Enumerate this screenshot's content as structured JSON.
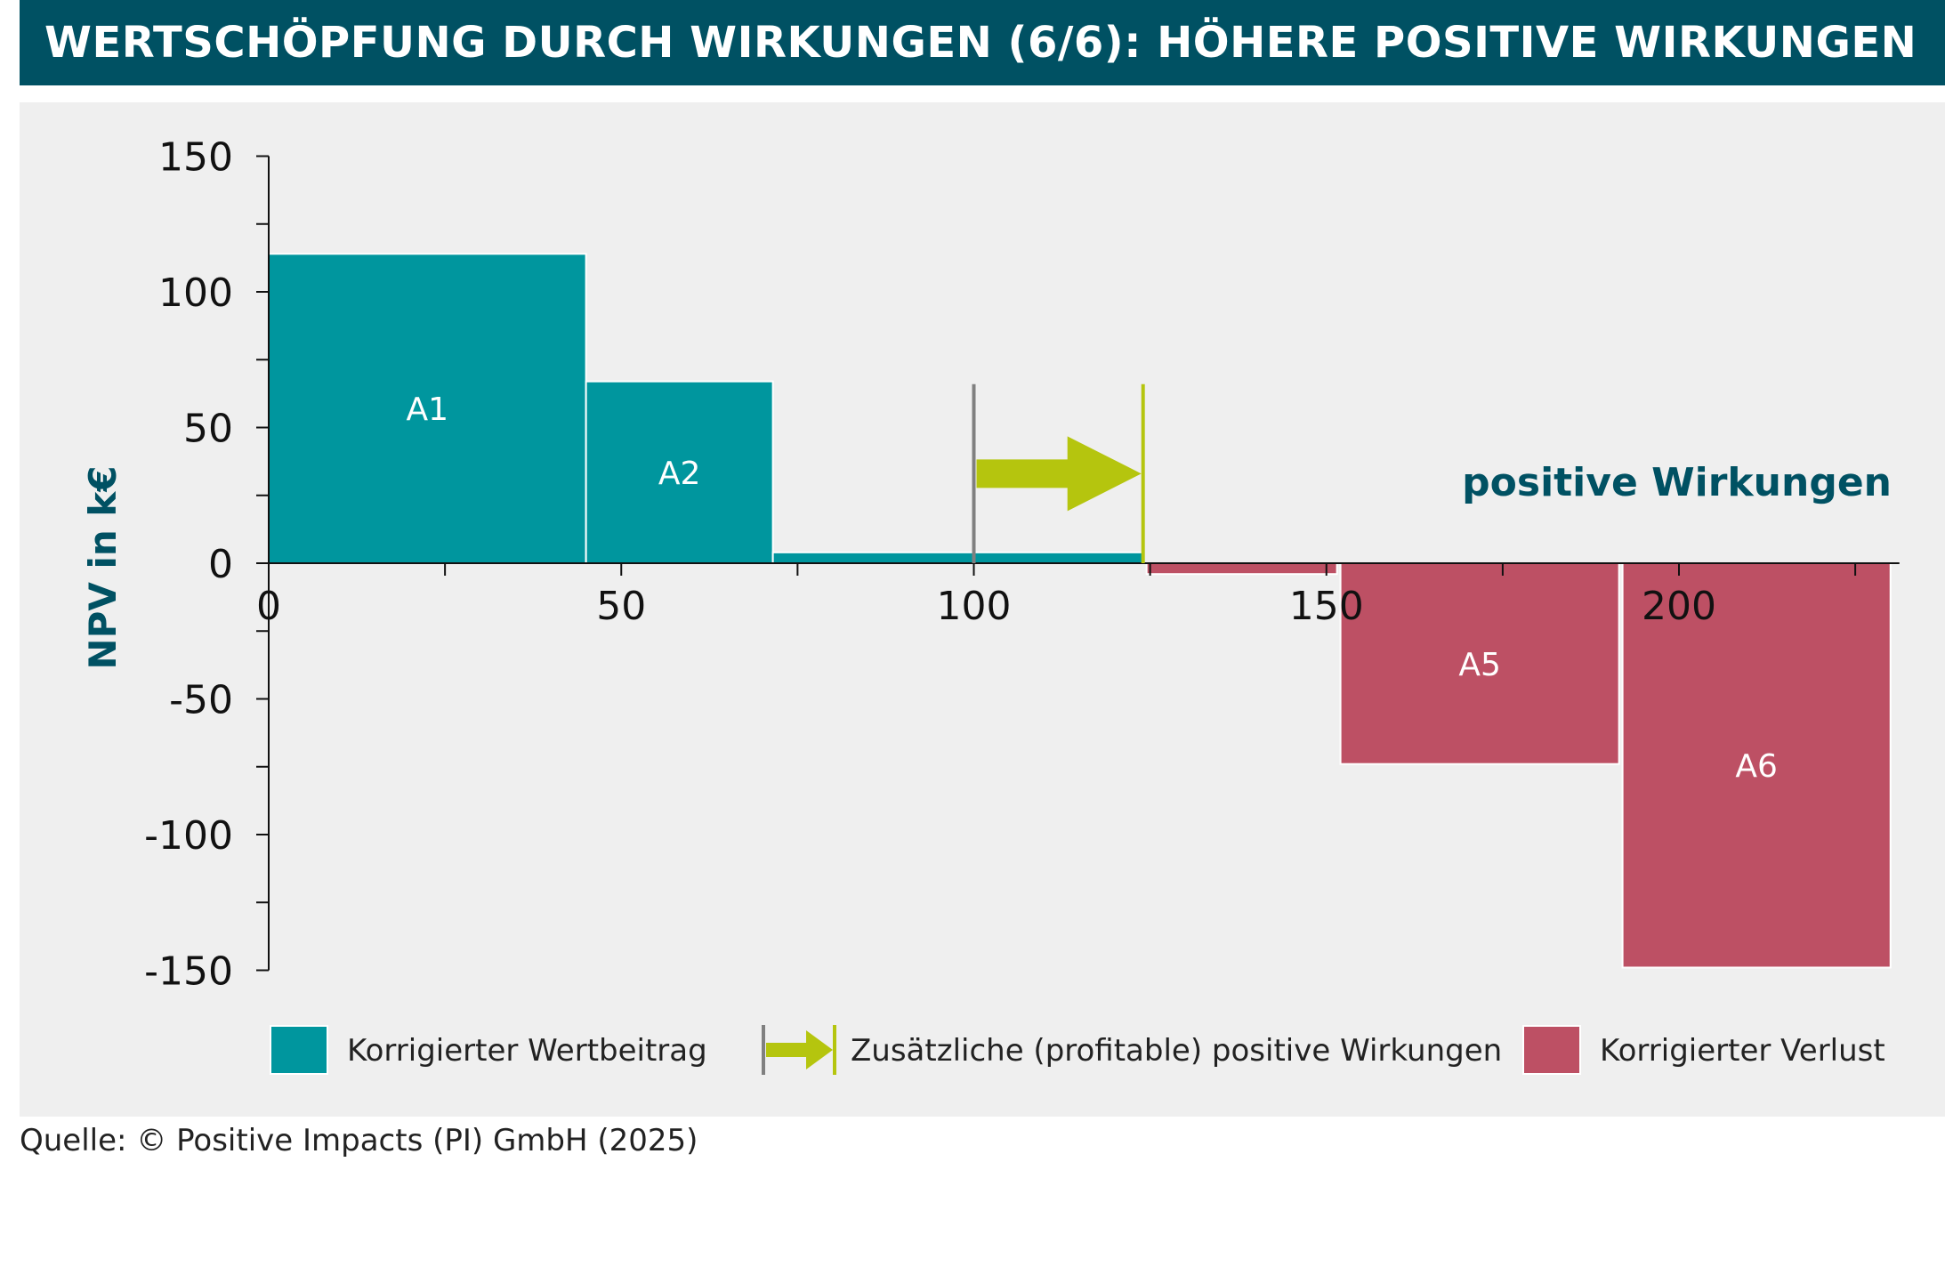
{
  "title": "WERTSCHÖPFUNG DURCH WIRKUNGEN (6/6): HÖHERE POSITIVE WIRKUNGEN",
  "source": "Quelle: © Positive Impacts (PI) GmbH (2025)",
  "colors": {
    "value": "#00969e",
    "loss": "#bd5064",
    "arrow": "#b5c50e",
    "marker_gray": "#808080",
    "accent_text": "#005163"
  },
  "chart_data": {
    "type": "bar",
    "ylabel": "NPV in k€",
    "xlim": [
      0,
      230
    ],
    "ylim": [
      -150,
      150
    ],
    "x_ticks": [
      0,
      50,
      100,
      150,
      200
    ],
    "y_ticks": [
      150,
      100,
      50,
      0,
      -50,
      -100,
      -150
    ],
    "annotation": "positive Wirkungen",
    "bars": [
      {
        "label": "A1",
        "x_start": 0,
        "x_end": 45,
        "value": 114,
        "kind": "value"
      },
      {
        "label": "A2",
        "x_start": 45,
        "x_end": 71.5,
        "value": 67,
        "kind": "value"
      },
      {
        "label": "",
        "x_start": 71.5,
        "x_end": 124,
        "value": 4,
        "kind": "value"
      },
      {
        "label": "",
        "x_start": 124.5,
        "x_end": 151.5,
        "value": -4,
        "kind": "loss"
      },
      {
        "label": "A5",
        "x_start": 152,
        "x_end": 191.5,
        "value": -74,
        "kind": "loss"
      },
      {
        "label": "A6",
        "x_start": 192,
        "x_end": 230,
        "value": -149,
        "kind": "loss"
      }
    ],
    "shift": {
      "from": 100,
      "to": 124,
      "arrow_y": 33
    },
    "legend": [
      {
        "label": "Korrigierter Wertbeitrag",
        "kind": "value"
      },
      {
        "label": "Zusätzliche (profitable) positive Wirkungen",
        "kind": "arrow"
      },
      {
        "label": "Korrigierter Verlust",
        "kind": "loss"
      }
    ]
  }
}
